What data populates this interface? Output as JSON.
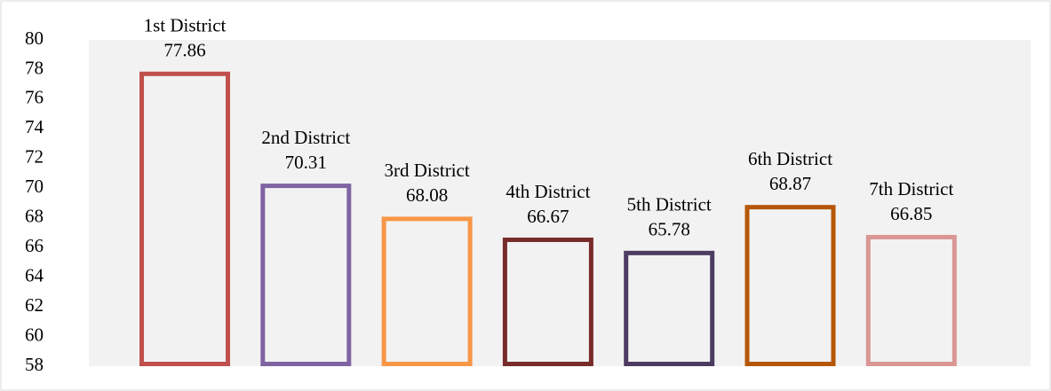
{
  "chart_data": {
    "type": "bar",
    "categories": [
      "1st District",
      "2nd District",
      "3rd District",
      "4th District",
      "5th District",
      "6th District",
      "7th District"
    ],
    "values": [
      77.86,
      70.31,
      68.08,
      66.67,
      65.78,
      68.87,
      66.85
    ],
    "colors": [
      "#c0504d",
      "#8064a2",
      "#f79646",
      "#772c2a",
      "#4d3b62",
      "#b65708",
      "#d99694"
    ],
    "ylim": [
      58,
      80
    ],
    "yticks": [
      58,
      60,
      62,
      64,
      66,
      68,
      70,
      72,
      74,
      76,
      78,
      80
    ],
    "grid": false
  }
}
